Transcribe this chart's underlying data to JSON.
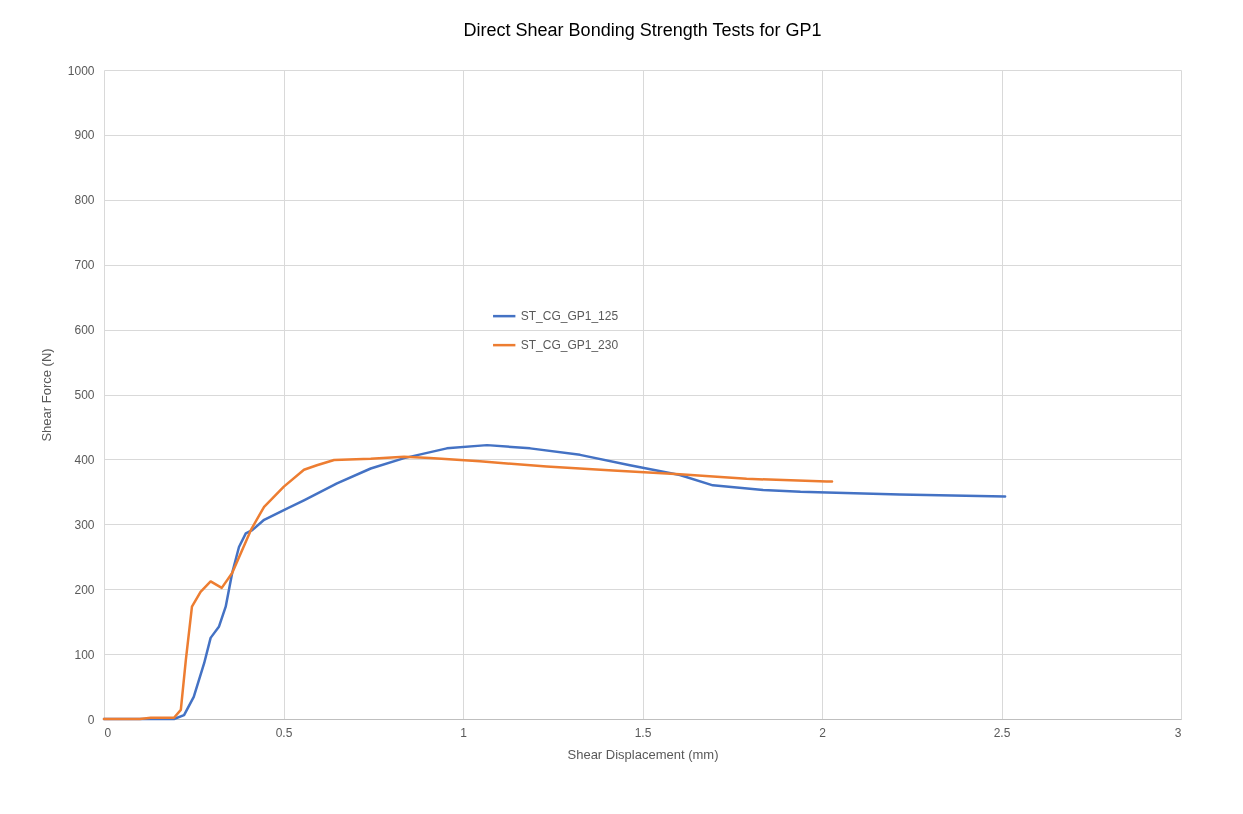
{
  "chart_data": {
    "type": "line",
    "title": "Direct Shear Bonding Strength Tests for GP1",
    "xlabel": "Shear Displacement (mm)",
    "ylabel": "Shear Force (N)",
    "xlim": [
      0,
      3
    ],
    "xticks": [
      0,
      0.5,
      1,
      1.5,
      2,
      2.5,
      3
    ],
    "ylim": [
      0,
      1000
    ],
    "yticks": [
      0,
      100,
      200,
      300,
      400,
      500,
      600,
      700,
      800,
      900,
      1000
    ],
    "grid": true,
    "legend": "top",
    "marker": "none",
    "line_style": "solid",
    "series": [
      {
        "name": "ST_CG_GP1_125",
        "color": "#4472c4",
        "x": [
          0,
          0.15,
          0.195,
          0.223,
          0.25,
          0.279,
          0.297,
          0.32,
          0.339,
          0.357,
          0.376,
          0.395,
          0.413,
          0.446,
          0.501,
          0.557,
          0.649,
          0.743,
          0.836,
          0.955,
          1.067,
          1.187,
          1.326,
          1.465,
          1.604,
          1.696,
          1.836,
          1.94,
          2.014,
          2.217,
          2.51
        ],
        "values": [
          0,
          0,
          0,
          6,
          34,
          86,
          125,
          142,
          173,
          225,
          265,
          286,
          291,
          307,
          322,
          337,
          363,
          386,
          402,
          417,
          422,
          417,
          407,
          391,
          376,
          360,
          353,
          350,
          349,
          346,
          343
        ]
      },
      {
        "name": "ST_CG_GP1_230",
        "color": "#ed7d31",
        "x": [
          0,
          0.1,
          0.13,
          0.195,
          0.214,
          0.228,
          0.245,
          0.269,
          0.297,
          0.328,
          0.357,
          0.409,
          0.446,
          0.501,
          0.557,
          0.593,
          0.641,
          0.743,
          0.836,
          0.908,
          1.047,
          1.233,
          1.418,
          1.604,
          1.79,
          2.013,
          2.028
        ],
        "values": [
          0,
          0,
          2,
          2,
          14,
          91,
          173,
          196,
          212,
          202,
          225,
          291,
          327,
          358,
          384,
          391,
          399,
          401,
          404,
          402,
          397,
          389,
          383,
          377,
          370,
          366,
          366
        ]
      }
    ]
  }
}
